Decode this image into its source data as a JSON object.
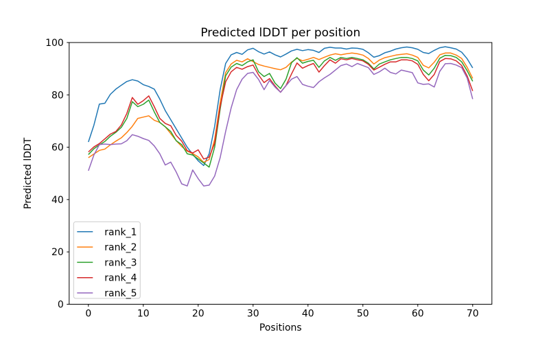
{
  "chart_data": {
    "type": "line",
    "title": "Predicted lDDT per position",
    "xlabel": "Positions",
    "ylabel": "Predicted lDDT",
    "xlim": [
      -3.5,
      73.5
    ],
    "ylim": [
      0,
      100
    ],
    "x_ticks": [
      0,
      10,
      20,
      30,
      40,
      50,
      60,
      70
    ],
    "y_ticks": [
      0,
      20,
      40,
      60,
      80,
      100
    ],
    "grid": false,
    "legend_position": "lower left",
    "x": [
      0,
      1,
      2,
      3,
      4,
      5,
      6,
      7,
      8,
      9,
      10,
      11,
      12,
      13,
      14,
      15,
      16,
      17,
      18,
      19,
      20,
      21,
      22,
      23,
      24,
      25,
      26,
      27,
      28,
      29,
      30,
      31,
      32,
      33,
      34,
      35,
      36,
      37,
      38,
      39,
      40,
      41,
      42,
      43,
      44,
      45,
      46,
      47,
      48,
      49,
      50,
      51,
      52,
      53,
      54,
      55,
      56,
      57,
      58,
      59,
      60,
      61,
      62,
      63,
      64,
      65,
      66,
      67,
      68,
      69,
      70
    ],
    "series": [
      {
        "name": "rank_1",
        "color": "#1f77b4",
        "values": [
          62.0,
          68.4,
          76.5,
          76.8,
          80.2,
          82.2,
          83.7,
          85.1,
          85.8,
          85.3,
          83.9,
          83.2,
          82.2,
          78.4,
          74.0,
          70.5,
          67.0,
          63.5,
          60.0,
          57.3,
          54.8,
          53.0,
          57.5,
          68.0,
          82.0,
          92.0,
          95.3,
          96.2,
          95.5,
          97.2,
          97.8,
          96.5,
          95.6,
          96.4,
          95.3,
          94.5,
          95.6,
          96.8,
          97.4,
          96.9,
          97.3,
          97.0,
          96.2,
          97.8,
          98.2,
          97.9,
          97.9,
          97.5,
          97.9,
          97.8,
          97.4,
          96.1,
          94.4,
          95.0,
          96.1,
          96.7,
          97.5,
          98.0,
          98.3,
          98.0,
          97.4,
          96.2,
          95.8,
          97.0,
          98.0,
          98.4,
          98.0,
          97.5,
          96.3,
          93.8,
          90.3
        ]
      },
      {
        "name": "rank_2",
        "color": "#ff7f0e",
        "values": [
          56.0,
          57.4,
          58.8,
          59.3,
          60.9,
          62.3,
          63.6,
          65.6,
          68.0,
          71.0,
          71.5,
          72.0,
          70.3,
          69.5,
          67.8,
          65.2,
          62.5,
          60.3,
          58.5,
          57.6,
          56.3,
          54.2,
          55.3,
          63.0,
          77.0,
          88.5,
          91.8,
          93.2,
          92.6,
          93.8,
          92.7,
          91.6,
          91.0,
          90.5,
          90.0,
          89.6,
          90.5,
          92.5,
          94.0,
          93.0,
          93.6,
          94.3,
          93.5,
          94.4,
          95.2,
          95.7,
          95.3,
          95.7,
          96.0,
          95.7,
          95.2,
          93.9,
          91.8,
          93.3,
          94.2,
          94.7,
          95.2,
          95.5,
          95.7,
          95.2,
          94.3,
          91.3,
          90.3,
          92.5,
          95.3,
          96.0,
          96.0,
          95.2,
          93.9,
          90.5,
          86.3
        ]
      },
      {
        "name": "rank_3",
        "color": "#2ca02c",
        "values": [
          57.2,
          59.4,
          60.9,
          62.2,
          64.2,
          65.7,
          67.6,
          71.0,
          77.4,
          75.5,
          76.4,
          78.0,
          73.5,
          69.5,
          67.8,
          66.0,
          62.5,
          61.0,
          57.5,
          57.0,
          55.5,
          54.0,
          52.4,
          60.0,
          74.5,
          87.3,
          90.6,
          92.0,
          91.2,
          92.6,
          93.4,
          88.8,
          87.0,
          88.2,
          84.5,
          82.4,
          86.0,
          92.3,
          94.2,
          92.1,
          92.8,
          93.2,
          90.5,
          93.0,
          94.3,
          93.2,
          94.3,
          93.9,
          94.3,
          93.9,
          93.4,
          92.1,
          89.9,
          91.8,
          92.6,
          93.4,
          93.9,
          94.3,
          94.3,
          93.9,
          93.0,
          89.5,
          87.6,
          90.2,
          94.0,
          95.1,
          95.0,
          94.3,
          92.6,
          89.2,
          85.2
        ]
      },
      {
        "name": "rank_4",
        "color": "#d62728",
        "values": [
          58.2,
          60.1,
          61.4,
          63.2,
          65.0,
          66.0,
          68.5,
          72.9,
          79.0,
          76.4,
          77.8,
          79.6,
          75.5,
          71.0,
          69.1,
          68.2,
          64.5,
          62.3,
          58.7,
          57.8,
          59.0,
          55.5,
          56.2,
          61.5,
          75.5,
          85.0,
          88.8,
          90.5,
          89.8,
          90.8,
          91.4,
          87.6,
          84.7,
          86.2,
          83.4,
          81.0,
          83.6,
          88.0,
          92.2,
          90.2,
          91.2,
          92.0,
          88.7,
          91.2,
          93.4,
          92.1,
          93.8,
          93.4,
          93.9,
          93.4,
          93.0,
          91.7,
          89.5,
          90.6,
          91.7,
          92.6,
          92.6,
          93.4,
          93.4,
          93.0,
          91.7,
          87.8,
          85.4,
          87.8,
          92.7,
          93.9,
          93.8,
          93.0,
          91.2,
          87.2,
          81.5
        ]
      },
      {
        "name": "rank_5",
        "color": "#9467bd",
        "values": [
          51.0,
          57.0,
          61.0,
          61.2,
          61.0,
          61.2,
          61.3,
          62.5,
          64.8,
          64.2,
          63.3,
          62.6,
          60.5,
          57.5,
          53.2,
          54.3,
          50.5,
          46.0,
          45.2,
          51.3,
          48.0,
          45.2,
          45.5,
          49.0,
          56.0,
          66.0,
          75.0,
          82.0,
          86.0,
          88.2,
          88.6,
          85.9,
          82.0,
          85.5,
          83.0,
          81.0,
          83.5,
          86.0,
          87.0,
          84.0,
          83.3,
          82.8,
          85.0,
          86.5,
          87.8,
          89.5,
          91.2,
          91.8,
          90.8,
          92.0,
          91.2,
          90.4,
          87.8,
          88.8,
          90.2,
          88.6,
          88.0,
          89.5,
          89.0,
          88.5,
          84.6,
          84.0,
          84.2,
          83.0,
          89.0,
          91.9,
          92.0,
          91.4,
          90.4,
          86.4,
          78.4
        ]
      }
    ]
  }
}
